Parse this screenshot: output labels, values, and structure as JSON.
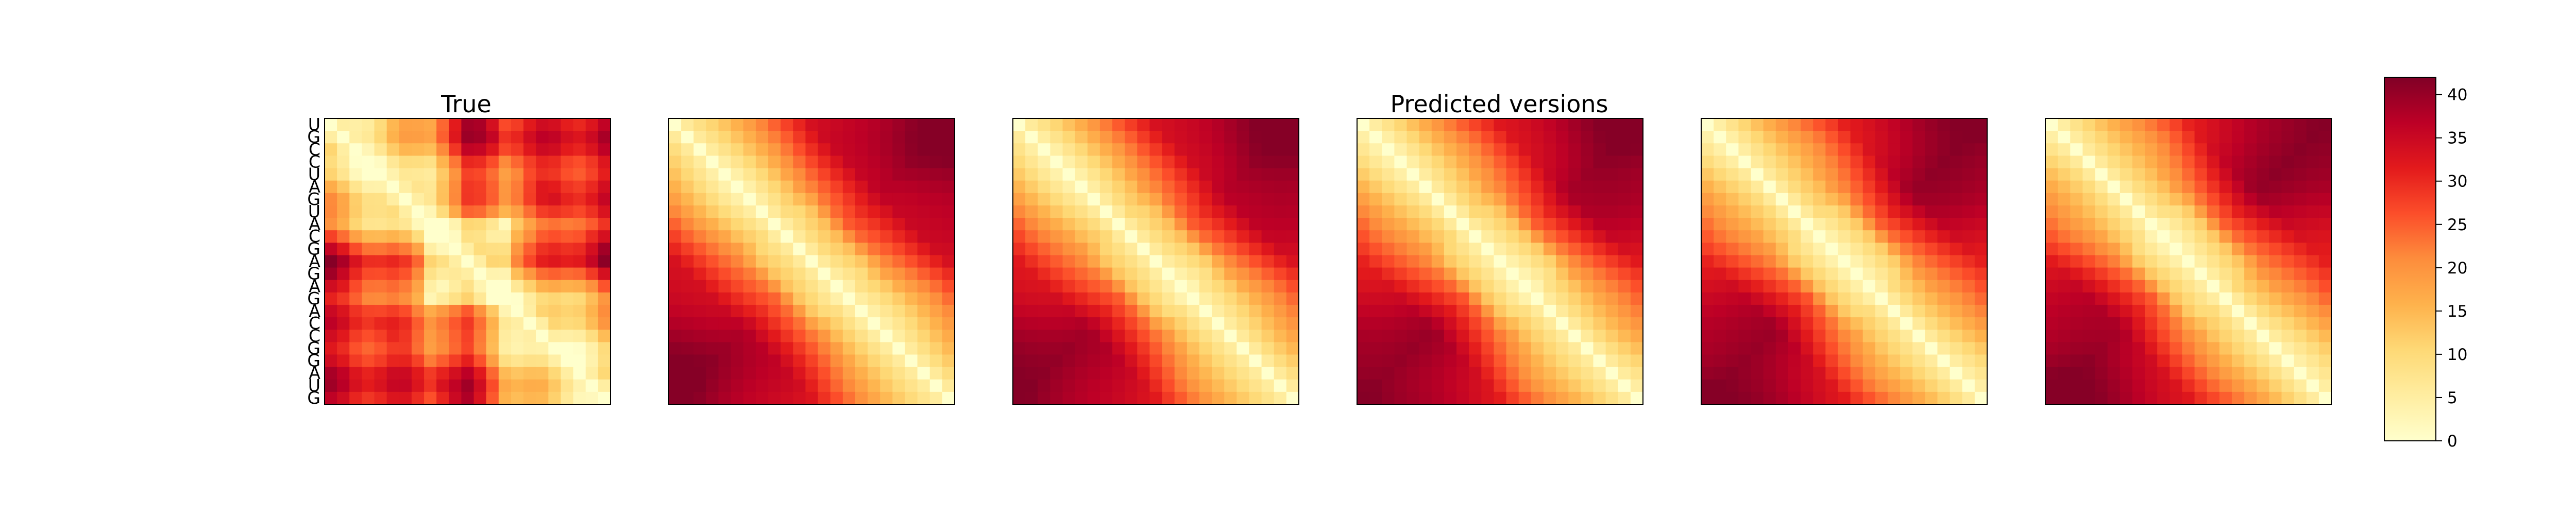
{
  "chart_data": {
    "type": "heatmap",
    "titles": {
      "true_panel": "True",
      "predicted_group": "Predicted versions"
    },
    "sequence": [
      "U",
      "G",
      "C",
      "C",
      "U",
      "A",
      "G",
      "U",
      "A",
      "C",
      "G",
      "A",
      "G",
      "A",
      "G",
      "A",
      "C",
      "C",
      "G",
      "G",
      "A",
      "U",
      "G"
    ],
    "panels": [
      {
        "kind": "true",
        "title": "True"
      },
      {
        "kind": "predicted"
      },
      {
        "kind": "predicted"
      },
      {
        "kind": "predicted"
      },
      {
        "kind": "predicted"
      },
      {
        "kind": "predicted"
      }
    ],
    "colorbar": {
      "colormap": "YlOrRd",
      "min": 0,
      "max": 42,
      "ticks": [
        0,
        5,
        10,
        15,
        20,
        25,
        30,
        35,
        40
      ]
    },
    "matrix_size": 23,
    "values_description": "pairwise distance maps; zero on the diagonal, peaking near 42 away from it"
  }
}
